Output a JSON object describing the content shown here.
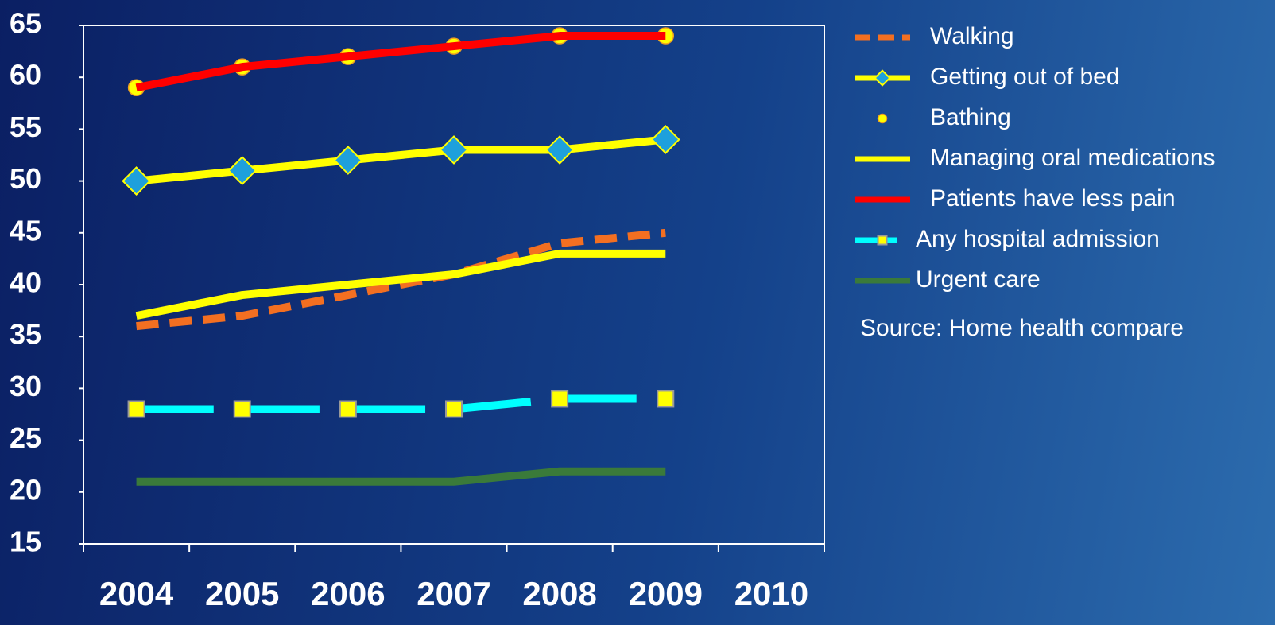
{
  "chart_data": {
    "type": "line",
    "categories": [
      "2004",
      "2005",
      "2006",
      "2007",
      "2008",
      "2009",
      "2010"
    ],
    "ylim": [
      15,
      65
    ],
    "yticks": [
      15,
      20,
      25,
      30,
      35,
      40,
      45,
      50,
      55,
      60,
      65
    ],
    "annotation": "Source: Home health compare",
    "series": [
      {
        "name": "Walking",
        "color": "#f36f21",
        "dash": "dashed",
        "values": [
          36,
          37,
          39,
          41,
          44,
          45,
          null
        ]
      },
      {
        "name": "Getting out of bed",
        "color": "#ffff00",
        "marker": "diamond",
        "marker_color": "#1ea0dc",
        "values": [
          50,
          51,
          52,
          53,
          53,
          54,
          null
        ]
      },
      {
        "name": "Bathing",
        "color": "#ffff00",
        "line": false,
        "marker": "circle",
        "marker_color": "#ffff00",
        "values": [
          59,
          61,
          62,
          63,
          64,
          64,
          null
        ]
      },
      {
        "name": "Managing oral medications",
        "color": "#ffff00",
        "values": [
          37,
          39,
          40,
          41,
          43,
          43,
          null
        ]
      },
      {
        "name": "Patients have less pain",
        "color": "#ff0000",
        "values": [
          59,
          61,
          62,
          63,
          64,
          64,
          null
        ]
      },
      {
        "name": "Any hospital admission",
        "color": "#00ffff",
        "dash": "long-dashed",
        "marker": "square",
        "marker_color": "#ffff00",
        "values": [
          28,
          28,
          28,
          28,
          29,
          29,
          null
        ]
      },
      {
        "name": "Urgent care",
        "color": "#3a7a3a",
        "values": [
          21,
          21,
          21,
          21,
          22,
          22,
          null
        ]
      }
    ]
  }
}
